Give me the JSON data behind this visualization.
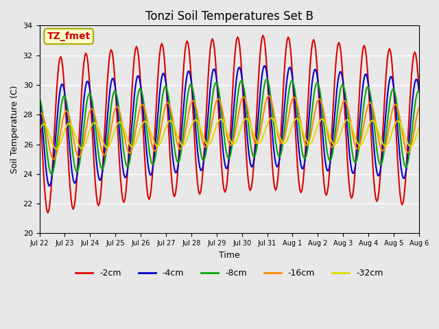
{
  "title": "Tonzi Soil Temperatures Set B",
  "xlabel": "Time",
  "ylabel": "Soil Temperature (C)",
  "ylim": [
    20,
    34
  ],
  "background_color": "#e8e8e8",
  "axes_background": "#e8e8e8",
  "grid_color": "white",
  "legend_labels": [
    "-2cm",
    "-4cm",
    "-8cm",
    "-16cm",
    "-32cm"
  ],
  "legend_colors": [
    "#dd0000",
    "#0000cc",
    "#00aa00",
    "#ff8800",
    "#dddd00"
  ],
  "line_widths": [
    1.5,
    1.5,
    1.5,
    1.5,
    1.5
  ],
  "annotation_text": "TZ_fmet",
  "annotation_bg": "#ffffcc",
  "annotation_border": "#aaaa00",
  "x_tick_labels": [
    "Jul 22",
    "Jul 23",
    "Jul 24",
    "Jul 25",
    "Jul 26",
    "Jul 27",
    "Jul 28",
    "Jul 29",
    "Jul 30",
    "Jul 31",
    "Aug 1",
    "Aug 2",
    "Aug 3",
    "Aug 4",
    "Aug 5",
    "Aug 6"
  ],
  "total_days": 15,
  "base_temp": 26.5,
  "amplitude_2cm": 5.2,
  "amplitude_4cm": 3.4,
  "amplitude_8cm": 2.6,
  "amplitude_16cm": 1.6,
  "amplitude_32cm": 0.85,
  "phase_4cm_hours": 1.5,
  "phase_8cm_hours": 3.5,
  "phase_16cm_hours": 5.5,
  "phase_32cm_hours": 8.0,
  "yticks": [
    20,
    22,
    24,
    26,
    28,
    30,
    32,
    34
  ]
}
